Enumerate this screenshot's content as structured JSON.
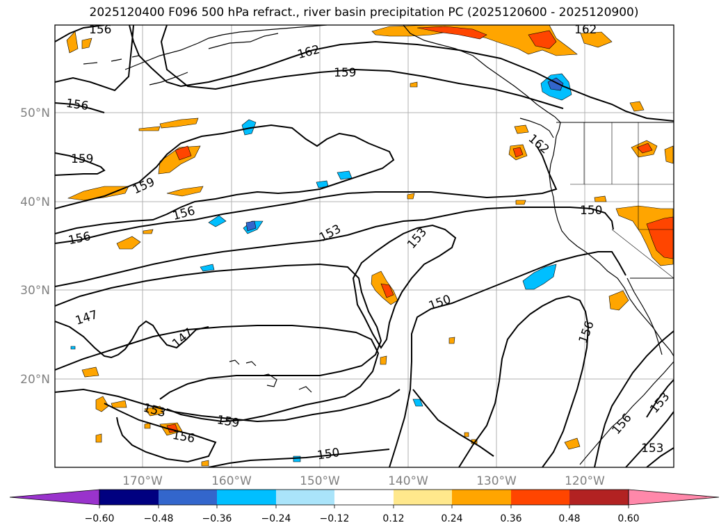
{
  "title": "2025120400 F096 500 hPa refract., river basin precipitation PC (2025120600 - 2025120900)",
  "latitude_labels": [
    "50°N",
    "40°N",
    "30°N",
    "20°N"
  ],
  "longitude_labels": [
    "170°W",
    "160°W",
    "150°W",
    "140°W",
    "130°W",
    "120°W"
  ],
  "contour_labels": [
    "156",
    "162",
    "162",
    "159",
    "156",
    "162",
    "159",
    "159",
    "156",
    "156",
    "153",
    "153",
    "150",
    "150",
    "147",
    "147",
    "156",
    "153",
    "159",
    "156",
    "150",
    "156",
    "153",
    "153"
  ],
  "colorbar": {
    "tick_labels": [
      "−0.60",
      "−0.48",
      "−0.36",
      "−0.24",
      "−0.12",
      "0.12",
      "0.24",
      "0.36",
      "0.48",
      "0.60"
    ],
    "colors": [
      "#9933cc",
      "#000080",
      "#3366cc",
      "#00bfff",
      "#aae4fa",
      "#ffffff",
      "#ffe88c",
      "#ffa500",
      "#ff4500",
      "#b22222",
      "#ff88aa"
    ]
  },
  "fill_colors": {
    "orange": "#ffa500",
    "red": "#ff4500",
    "light_blue": "#00bfff",
    "blue": "#3366cc"
  }
}
